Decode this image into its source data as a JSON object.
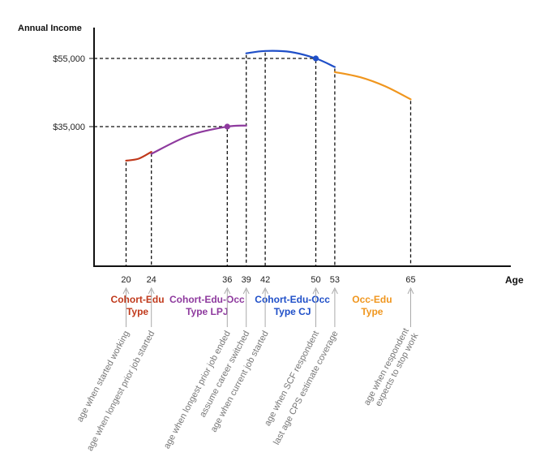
{
  "chart_data": {
    "type": "line",
    "ylabel": "Annual Income",
    "xlabel": "Age",
    "y_ticks": [
      {
        "value": 35000,
        "label": "$35,000"
      },
      {
        "value": 55000,
        "label": "$55,000"
      }
    ],
    "x_ticks": [
      20,
      24,
      36,
      39,
      42,
      50,
      53,
      65
    ],
    "series": [
      {
        "name": "Cohort-Edu Type",
        "color": "#c0391b",
        "x": [
          20,
          22,
          24
        ],
        "y": [
          25000,
          25600,
          27600
        ]
      },
      {
        "name": "Cohort-Edu-Occ Type LPJ",
        "color": "#8e3a9e",
        "x": [
          24,
          30,
          36,
          39
        ],
        "y": [
          27000,
          32400,
          35000,
          35300
        ]
      },
      {
        "name": "Cohort-Edu-Occ Type CJ",
        "color": "#1f4fc8",
        "x": [
          39,
          42,
          46,
          50,
          53
        ],
        "y": [
          56500,
          57200,
          56900,
          55000,
          52500
        ]
      },
      {
        "name": "Occ-Edu Type",
        "color": "#f0961e",
        "x": [
          53,
          57,
          61,
          65
        ],
        "y": [
          51000,
          49500,
          46800,
          43000
        ]
      }
    ],
    "highlight_points": [
      {
        "x": 36,
        "y": 35000,
        "color": "#8e3a9e"
      },
      {
        "x": 50,
        "y": 55000,
        "color": "#1f4fc8"
      }
    ],
    "segment_labels": [
      {
        "lines": [
          "Cohort-Edu",
          "Type"
        ],
        "x": 21.8,
        "color": "#c0391b"
      },
      {
        "lines": [
          "Cohort-Edu-Occ",
          "Type LPJ"
        ],
        "x": 32.8,
        "color": "#8e3a9e"
      },
      {
        "lines": [
          "Cohort-Edu-Occ",
          "Type CJ"
        ],
        "x": 46.3,
        "color": "#1f4fc8"
      },
      {
        "lines": [
          "Occ-Edu",
          "Type"
        ],
        "x": 58.9,
        "color": "#f0961e"
      }
    ],
    "annotations": [
      {
        "x": 20,
        "lines": [
          "age when started working"
        ]
      },
      {
        "x": 24,
        "lines": [
          "age when longest prior job started"
        ]
      },
      {
        "x": 36,
        "lines": [
          "age when longest prior job ended"
        ]
      },
      {
        "x": 39,
        "lines": [
          "assume career switched"
        ]
      },
      {
        "x": 42,
        "lines": [
          "age when current job started"
        ]
      },
      {
        "x": 50,
        "lines": [
          "age when SCF respondent"
        ]
      },
      {
        "x": 53,
        "lines": [
          "last age CPS estimate coverage"
        ]
      },
      {
        "x": 65,
        "lines": [
          "age when respondent",
          "expects to stop work"
        ]
      }
    ],
    "grid": false,
    "legend": "none"
  }
}
